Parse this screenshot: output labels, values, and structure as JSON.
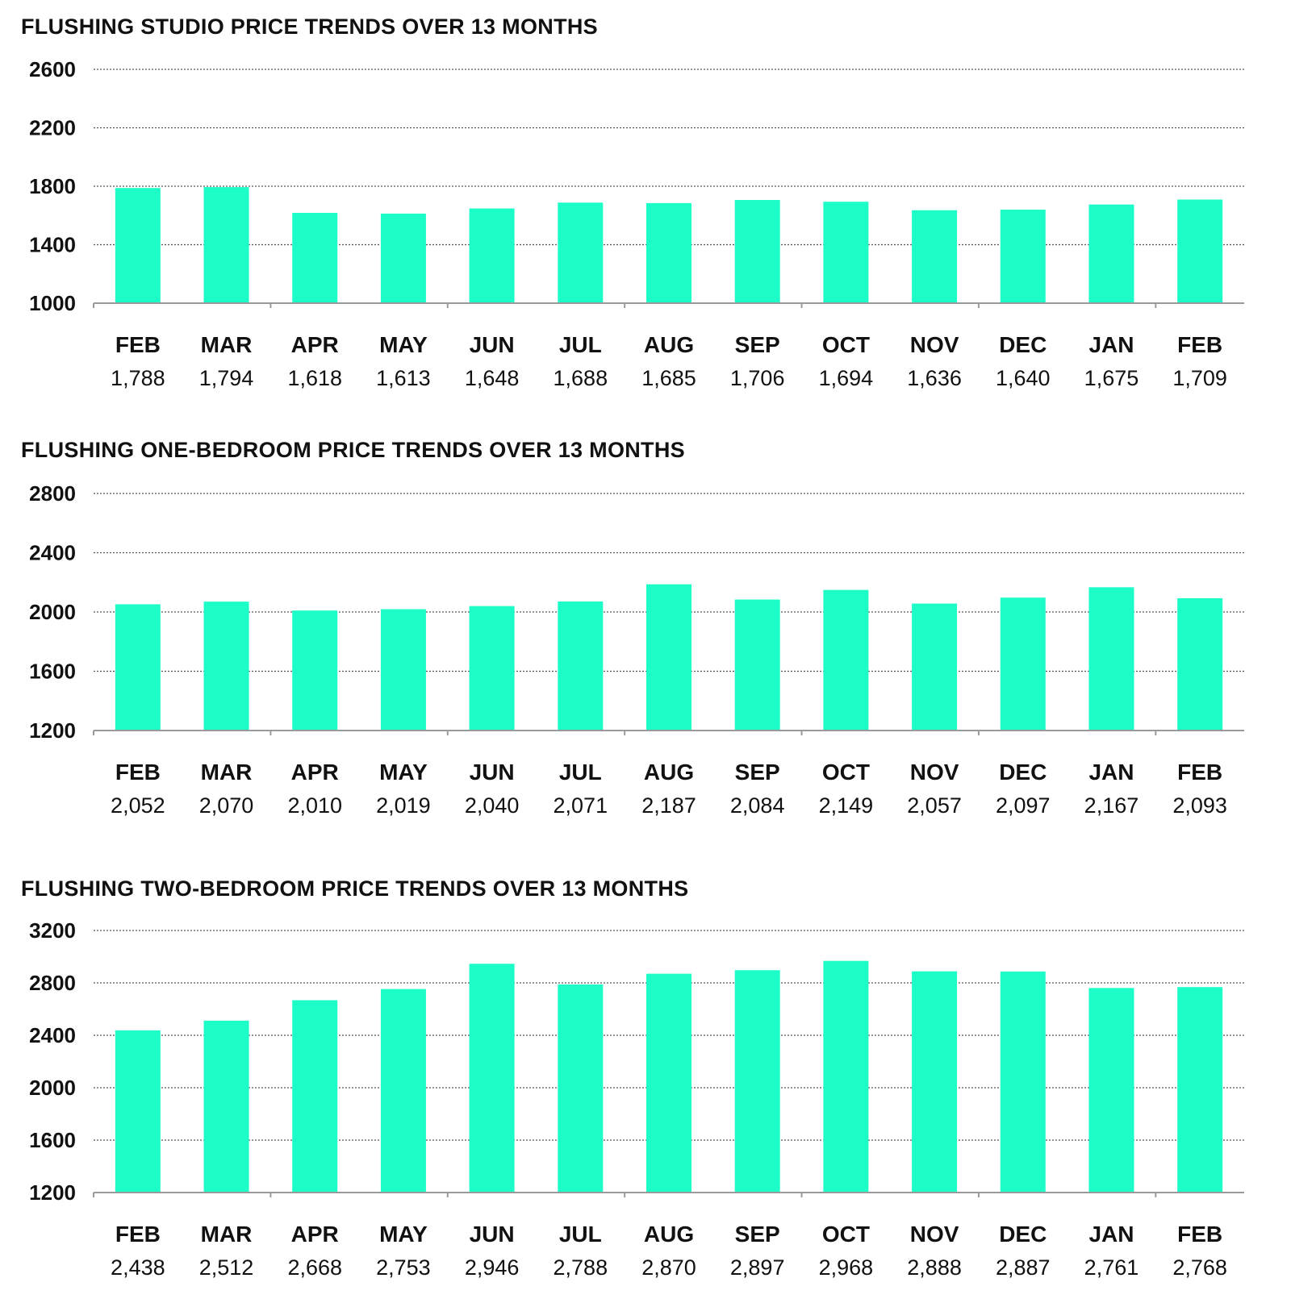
{
  "colors": {
    "bar": "#1dfdc8",
    "grid": "#555555",
    "axis": "#9a9a9a"
  },
  "chart_data": [
    {
      "type": "bar",
      "title": "FLUSHING STUDIO PRICE TRENDS OVER 13 MONTHS",
      "categories": [
        "FEB",
        "MAR",
        "APR",
        "MAY",
        "JUN",
        "JUL",
        "AUG",
        "SEP",
        "OCT",
        "NOV",
        "DEC",
        "JAN",
        "FEB"
      ],
      "values": [
        1788,
        1794,
        1618,
        1613,
        1648,
        1688,
        1685,
        1706,
        1694,
        1636,
        1640,
        1675,
        1709
      ],
      "value_labels": [
        "1,788",
        "1,794",
        "1,618",
        "1,613",
        "1,648",
        "1,688",
        "1,685",
        "1,706",
        "1,694",
        "1,636",
        "1,640",
        "1,675",
        "1,709"
      ],
      "yticks": [
        1000,
        1400,
        1800,
        2200,
        2600
      ],
      "ylim": [
        1000,
        2600
      ],
      "grid": true,
      "xlabel": "",
      "ylabel": ""
    },
    {
      "type": "bar",
      "title": "FLUSHING ONE-BEDROOM PRICE TRENDS OVER 13 MONTHS",
      "categories": [
        "FEB",
        "MAR",
        "APR",
        "MAY",
        "JUN",
        "JUL",
        "AUG",
        "SEP",
        "OCT",
        "NOV",
        "DEC",
        "JAN",
        "FEB"
      ],
      "values": [
        2052,
        2070,
        2010,
        2019,
        2040,
        2071,
        2187,
        2084,
        2149,
        2057,
        2097,
        2167,
        2093
      ],
      "value_labels": [
        "2,052",
        "2,070",
        "2,010",
        "2,019",
        "2,040",
        "2,071",
        "2,187",
        "2,084",
        "2,149",
        "2,057",
        "2,097",
        "2,167",
        "2,093"
      ],
      "yticks": [
        1200,
        1600,
        2000,
        2400,
        2800
      ],
      "ylim": [
        1200,
        2800
      ],
      "grid": true,
      "xlabel": "",
      "ylabel": ""
    },
    {
      "type": "bar",
      "title": "FLUSHING TWO-BEDROOM PRICE TRENDS OVER 13 MONTHS",
      "categories": [
        "FEB",
        "MAR",
        "APR",
        "MAY",
        "JUN",
        "JUL",
        "AUG",
        "SEP",
        "OCT",
        "NOV",
        "DEC",
        "JAN",
        "FEB"
      ],
      "values": [
        2438,
        2512,
        2668,
        2753,
        2946,
        2788,
        2870,
        2897,
        2968,
        2888,
        2887,
        2761,
        2768
      ],
      "value_labels": [
        "2,438",
        "2,512",
        "2,668",
        "2,753",
        "2,946",
        "2,788",
        "2,870",
        "2,897",
        "2,968",
        "2,888",
        "2,887",
        "2,761",
        "2,768"
      ],
      "yticks": [
        1200,
        1600,
        2000,
        2400,
        2800,
        3200
      ],
      "ylim": [
        1200,
        3200
      ],
      "grid": true,
      "xlabel": "",
      "ylabel": ""
    }
  ]
}
